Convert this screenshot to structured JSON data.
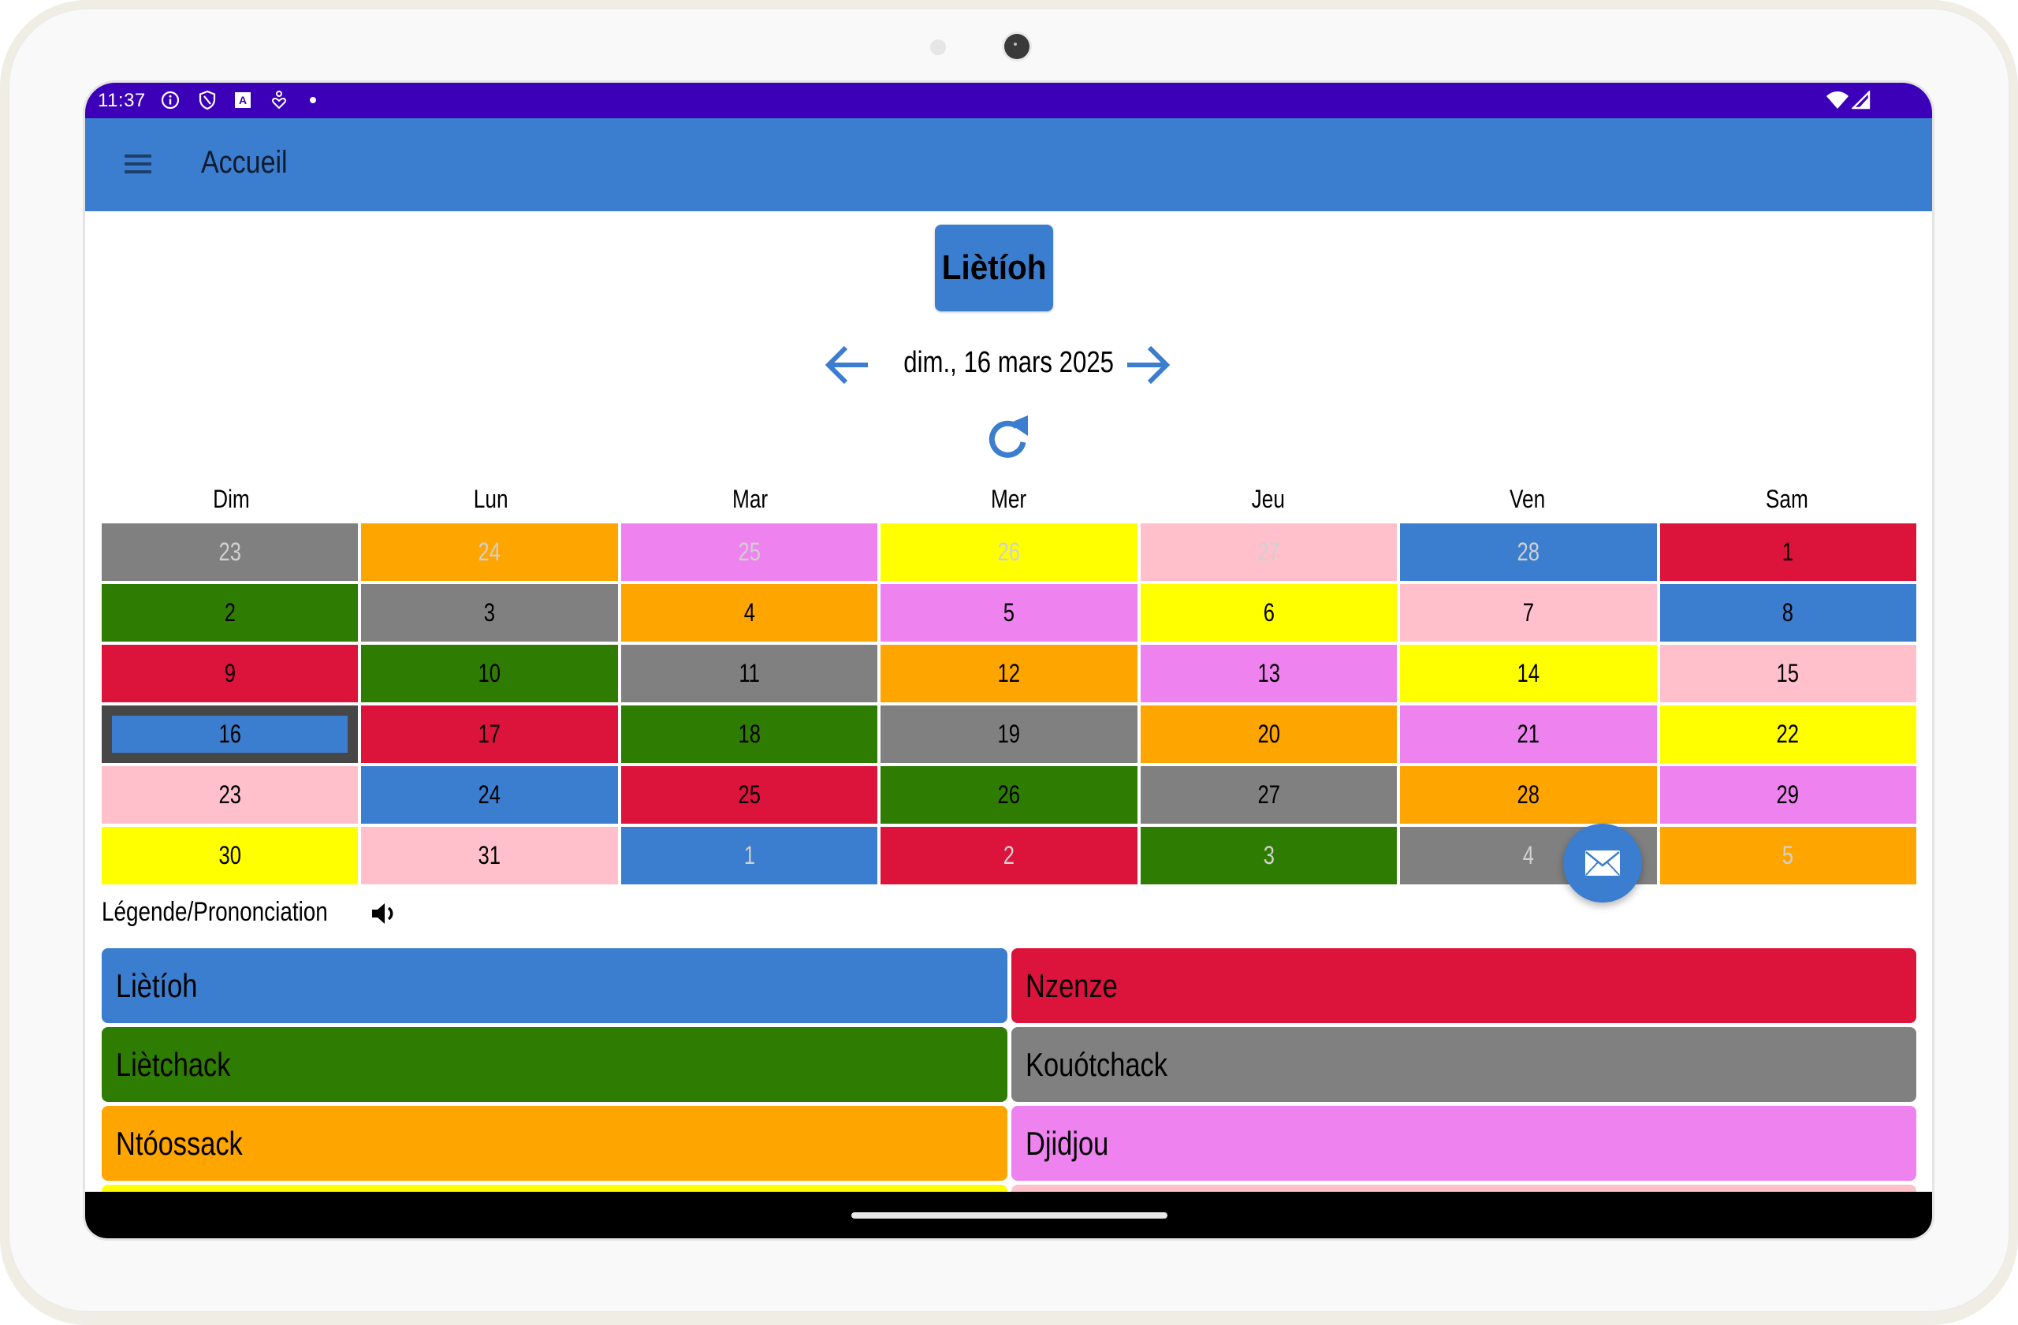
{
  "status_bar": {
    "time": "11:37",
    "left_icons": [
      "info-icon",
      "shield-icon",
      "font-a-icon",
      "accessibility-heart-icon",
      "dot-icon"
    ],
    "right_icons": [
      "wifi-icon",
      "cellular-signal-icon"
    ]
  },
  "app_bar": {
    "menu_icon": "hamburger-menu-icon",
    "title": "Accueil"
  },
  "day_name_button": {
    "label": "Liètíoh",
    "color": "#3b7dce"
  },
  "date_nav": {
    "prev_icon": "arrow-left-icon",
    "date": "dim., 16 mars 2025",
    "next_icon": "arrow-right-icon",
    "refresh_icon": "refresh-icon"
  },
  "calendar": {
    "weekdays": [
      "Dim",
      "Lun",
      "Mar",
      "Mer",
      "Jeu",
      "Ven",
      "Sam"
    ],
    "selected_day": "16",
    "cells": [
      {
        "day": "23",
        "color": "#808080",
        "muted": true
      },
      {
        "day": "24",
        "color": "#ffa500",
        "muted": true
      },
      {
        "day": "25",
        "color": "#ee82ee",
        "muted": true
      },
      {
        "day": "26",
        "color": "#ffff00",
        "muted": true
      },
      {
        "day": "27",
        "color": "#ffc0cb",
        "muted": true
      },
      {
        "day": "28",
        "color": "#3b7dce",
        "muted": true
      },
      {
        "day": "1",
        "color": "#dc143c",
        "muted": false
      },
      {
        "day": "2",
        "color": "#2e7d02",
        "muted": false
      },
      {
        "day": "3",
        "color": "#808080",
        "muted": false
      },
      {
        "day": "4",
        "color": "#ffa500",
        "muted": false
      },
      {
        "day": "5",
        "color": "#ee82ee",
        "muted": false
      },
      {
        "day": "6",
        "color": "#ffff00",
        "muted": false
      },
      {
        "day": "7",
        "color": "#ffc0cb",
        "muted": false
      },
      {
        "day": "8",
        "color": "#3b7dce",
        "muted": false
      },
      {
        "day": "9",
        "color": "#dc143c",
        "muted": false
      },
      {
        "day": "10",
        "color": "#2e7d02",
        "muted": false
      },
      {
        "day": "11",
        "color": "#808080",
        "muted": false
      },
      {
        "day": "12",
        "color": "#ffa500",
        "muted": false
      },
      {
        "day": "13",
        "color": "#ee82ee",
        "muted": false
      },
      {
        "day": "14",
        "color": "#ffff00",
        "muted": false
      },
      {
        "day": "15",
        "color": "#ffc0cb",
        "muted": false
      },
      {
        "day": "16",
        "color": "#3b7dce",
        "muted": false,
        "selected": true
      },
      {
        "day": "17",
        "color": "#dc143c",
        "muted": false
      },
      {
        "day": "18",
        "color": "#2e7d02",
        "muted": false
      },
      {
        "day": "19",
        "color": "#808080",
        "muted": false
      },
      {
        "day": "20",
        "color": "#ffa500",
        "muted": false
      },
      {
        "day": "21",
        "color": "#ee82ee",
        "muted": false
      },
      {
        "day": "22",
        "color": "#ffff00",
        "muted": false
      },
      {
        "day": "23",
        "color": "#ffc0cb",
        "muted": false
      },
      {
        "day": "24",
        "color": "#3b7dce",
        "muted": false
      },
      {
        "day": "25",
        "color": "#dc143c",
        "muted": false
      },
      {
        "day": "26",
        "color": "#2e7d02",
        "muted": false
      },
      {
        "day": "27",
        "color": "#808080",
        "muted": false
      },
      {
        "day": "28",
        "color": "#ffa500",
        "muted": false
      },
      {
        "day": "29",
        "color": "#ee82ee",
        "muted": false
      },
      {
        "day": "30",
        "color": "#ffff00",
        "muted": false
      },
      {
        "day": "31",
        "color": "#ffc0cb",
        "muted": false
      },
      {
        "day": "1",
        "color": "#3b7dce",
        "muted": true
      },
      {
        "day": "2",
        "color": "#dc143c",
        "muted": true
      },
      {
        "day": "3",
        "color": "#2e7d02",
        "muted": true
      },
      {
        "day": "4",
        "color": "#808080",
        "muted": true
      },
      {
        "day": "5",
        "color": "#ffa500",
        "muted": true
      }
    ]
  },
  "legend": {
    "title": "Légende/Prononciation",
    "speaker_icon": "speaker-icon",
    "items": [
      {
        "label": "Liètíoh",
        "color": "#3b7dce"
      },
      {
        "label": "Nzenze",
        "color": "#dc143c"
      },
      {
        "label": "Liètchack",
        "color": "#2e7d02"
      },
      {
        "label": "Kouótchack",
        "color": "#808080"
      },
      {
        "label": "Ntóossack",
        "color": "#ffa500"
      },
      {
        "label": "Djidjou",
        "color": "#ee82ee"
      },
      {
        "label": "",
        "color": "#ffff00"
      },
      {
        "label": "",
        "color": "#ffc0cb"
      }
    ]
  },
  "fab": {
    "icon": "mail-icon"
  },
  "theme": {
    "status_bar": "#3c00b8",
    "app_bar": "#3b7dce",
    "selected_border": "#474747"
  }
}
